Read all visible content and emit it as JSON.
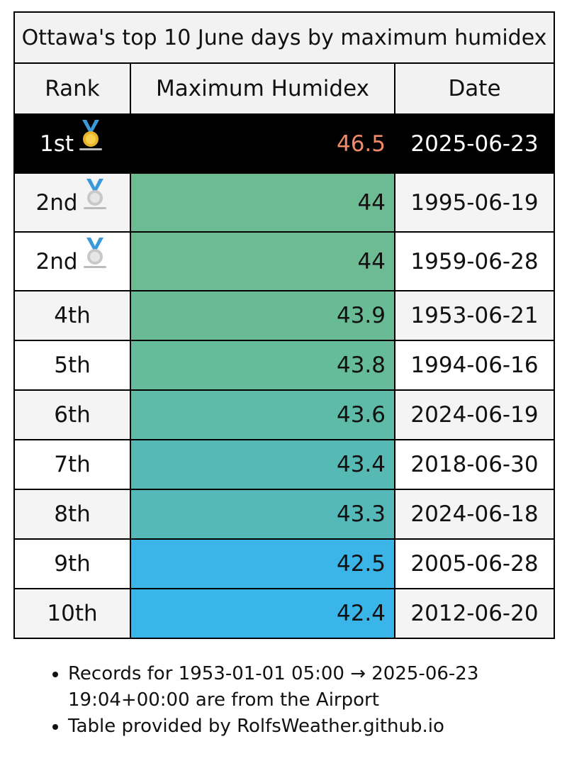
{
  "table": {
    "caption": "Ottawa's top 10 June days by maximum humidex",
    "headers": [
      "Rank",
      "Maximum Humidex",
      "Date"
    ],
    "rows": [
      {
        "rank": "1st",
        "medal": "gold",
        "value": "46.5",
        "date": "2025-06-23",
        "color": "#000000"
      },
      {
        "rank": "2nd",
        "medal": "silver",
        "value": "44",
        "date": "1995-06-19",
        "color": "#6cbb92"
      },
      {
        "rank": "2nd",
        "medal": "silver",
        "value": "44",
        "date": "1959-06-28",
        "color": "#6cbb92"
      },
      {
        "rank": "4th",
        "medal": "",
        "value": "43.9",
        "date": "1953-06-21",
        "color": "#69bb96"
      },
      {
        "rank": "5th",
        "medal": "",
        "value": "43.8",
        "date": "1994-06-16",
        "color": "#65bb9a"
      },
      {
        "rank": "6th",
        "medal": "",
        "value": "43.6",
        "date": "2024-06-19",
        "color": "#5ebba8"
      },
      {
        "rank": "7th",
        "medal": "",
        "value": "43.4",
        "date": "2018-06-30",
        "color": "#57b9b4"
      },
      {
        "rank": "8th",
        "medal": "",
        "value": "43.3",
        "date": "2024-06-18",
        "color": "#54b9b8"
      },
      {
        "rank": "9th",
        "medal": "",
        "value": "42.5",
        "date": "2005-06-28",
        "color": "#3bb5e8"
      },
      {
        "rank": "10th",
        "medal": "",
        "value": "42.4",
        "date": "2012-06-20",
        "color": "#3ab5ea"
      }
    ]
  },
  "notes": [
    "Records for 1953-01-01 05:00 → 2025-06-23 19:04+00:00 are from the Airport",
    "Table provided by RolfsWeather.github.io"
  ],
  "medal_icons": {
    "gold": "gold-medal-icon",
    "silver": "silver-medal-icon"
  }
}
